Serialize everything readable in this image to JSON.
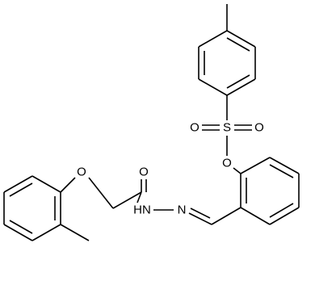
{
  "atoms": [
    {
      "label": "O"
    },
    {
      "label": "S"
    },
    {
      "label": "O"
    },
    {
      "label": "O"
    },
    {
      "label": "O"
    },
    {
      "label": "HN"
    },
    {
      "label": "N"
    },
    {
      "label": "O"
    }
  ]
}
